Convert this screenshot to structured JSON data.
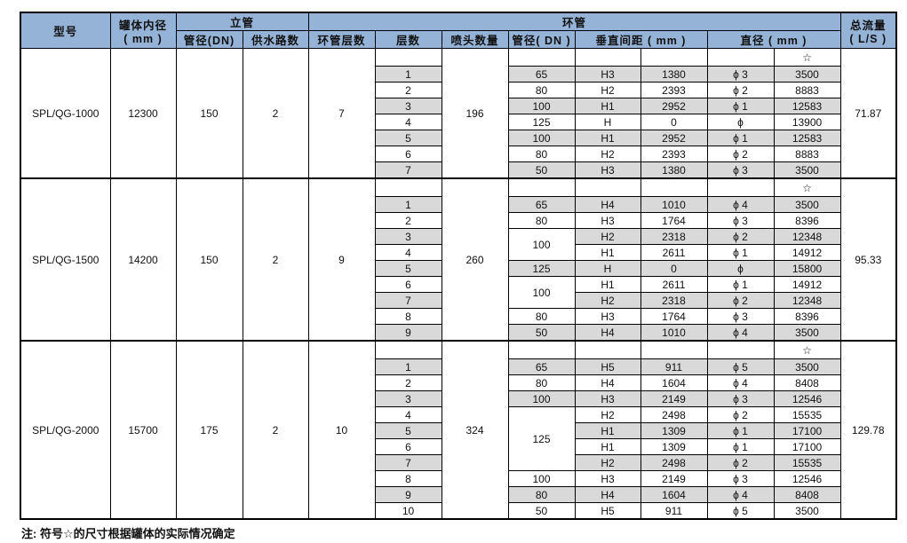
{
  "header": {
    "model": "型号",
    "tank_diameter": "罐体内径",
    "tank_unit": "( mm )",
    "riser": "立管",
    "riser_dn": "管径(DN)",
    "riser_supply": "供水路数",
    "ring": "环管",
    "ring_layers": "环管层数",
    "layer": "层数",
    "nozzles": "喷头数量",
    "ring_dn": "管径( DN )",
    "vertical_spacing": "垂直间距 ( mm )",
    "diameter": "直径 ( mm )",
    "total_flow": "总流量",
    "flow_unit": "( L/S )"
  },
  "star_symbol": "☆",
  "colors": {
    "header_bg": "#95b3d7",
    "shade": "#d9d9d9"
  },
  "groups": [
    {
      "model": "SPL/QG-1000",
      "tank_diameter": "12300",
      "riser_dn": "150",
      "supply": "2",
      "ring_layers": "7",
      "nozzles": "196",
      "flow": "71.87",
      "rows": [
        {
          "layer": "1",
          "dn": "65",
          "h": "H3",
          "dist": "1380",
          "phi": "ϕ 3",
          "dia": "3500"
        },
        {
          "layer": "2",
          "dn": "80",
          "h": "H2",
          "dist": "2393",
          "phi": "ϕ 2",
          "dia": "8883"
        },
        {
          "layer": "3",
          "dn": "100",
          "h": "H1",
          "dist": "2952",
          "phi": "ϕ 1",
          "dia": "12583"
        },
        {
          "layer": "4",
          "dn": "125",
          "h": "H",
          "dist": "0",
          "phi": "ϕ",
          "dia": "13900"
        },
        {
          "layer": "5",
          "dn": "100",
          "h": "H1",
          "dist": "2952",
          "phi": "ϕ 1",
          "dia": "12583"
        },
        {
          "layer": "6",
          "dn": "80",
          "h": "H2",
          "dist": "2393",
          "phi": "ϕ 2",
          "dia": "8883"
        },
        {
          "layer": "7",
          "dn": "50",
          "h": "H3",
          "dist": "1380",
          "phi": "ϕ 3",
          "dia": "3500"
        }
      ]
    },
    {
      "model": "SPL/QG-1500",
      "tank_diameter": "14200",
      "riser_dn": "150",
      "supply": "2",
      "ring_layers": "9",
      "nozzles": "260",
      "flow": "95.33",
      "rows": [
        {
          "layer": "1",
          "dn": "65",
          "h": "H4",
          "dist": "1010",
          "phi": "ϕ 4",
          "dia": "3500"
        },
        {
          "layer": "2",
          "dn": "80",
          "h": "H3",
          "dist": "1764",
          "phi": "ϕ 3",
          "dia": "8396"
        },
        {
          "layer": "3",
          "dn": "100",
          "h": "H2",
          "dist": "2318",
          "phi": "ϕ 2",
          "dia": "12348"
        },
        {
          "layer": "4",
          "dn": null,
          "h": "H1",
          "dist": "2611",
          "phi": "ϕ 1",
          "dia": "14912"
        },
        {
          "layer": "5",
          "dn": "125",
          "h": "H",
          "dist": "0",
          "phi": "ϕ",
          "dia": "15800"
        },
        {
          "layer": "6",
          "dn": "100",
          "h": "H1",
          "dist": "2611",
          "phi": "ϕ 1",
          "dia": "14912"
        },
        {
          "layer": "7",
          "dn": null,
          "h": "H2",
          "dist": "2318",
          "phi": "ϕ 2",
          "dia": "12348"
        },
        {
          "layer": "8",
          "dn": "80",
          "h": "H3",
          "dist": "1764",
          "phi": "ϕ 3",
          "dia": "8396"
        },
        {
          "layer": "9",
          "dn": "50",
          "h": "H4",
          "dist": "1010",
          "phi": "ϕ 4",
          "dia": "3500"
        }
      ]
    },
    {
      "model": "SPL/QG-2000",
      "tank_diameter": "15700",
      "riser_dn": "175",
      "supply": "2",
      "ring_layers": "10",
      "nozzles": "324",
      "flow": "129.78",
      "rows": [
        {
          "layer": "1",
          "dn": "65",
          "h": "H5",
          "dist": "911",
          "phi": "ϕ 5",
          "dia": "3500"
        },
        {
          "layer": "2",
          "dn": "80",
          "h": "H4",
          "dist": "1604",
          "phi": "ϕ 4",
          "dia": "8408"
        },
        {
          "layer": "3",
          "dn": "100",
          "h": "H3",
          "dist": "2149",
          "phi": "ϕ 3",
          "dia": "12546"
        },
        {
          "layer": "4",
          "dn": "125",
          "h": "H2",
          "dist": "2498",
          "phi": "ϕ 2",
          "dia": "15535"
        },
        {
          "layer": "5",
          "dn": null,
          "h": "H1",
          "dist": "1309",
          "phi": "ϕ 1",
          "dia": "17100"
        },
        {
          "layer": "6",
          "dn": null,
          "h": "H1",
          "dist": "1309",
          "phi": "ϕ 1",
          "dia": "17100"
        },
        {
          "layer": "7",
          "dn": null,
          "h": "H2",
          "dist": "2498",
          "phi": "ϕ 2",
          "dia": "15535"
        },
        {
          "layer": "8",
          "dn": "100",
          "h": "H3",
          "dist": "2149",
          "phi": "ϕ 3",
          "dia": "12546"
        },
        {
          "layer": "9",
          "dn": "80",
          "h": "H4",
          "dist": "1604",
          "phi": "ϕ 4",
          "dia": "8408"
        },
        {
          "layer": "10",
          "dn": "50",
          "h": "H5",
          "dist": "911",
          "phi": "ϕ 5",
          "dia": "3500"
        }
      ]
    }
  ],
  "note": "注:  符号☆的尺寸根据罐体的实际情况确定"
}
